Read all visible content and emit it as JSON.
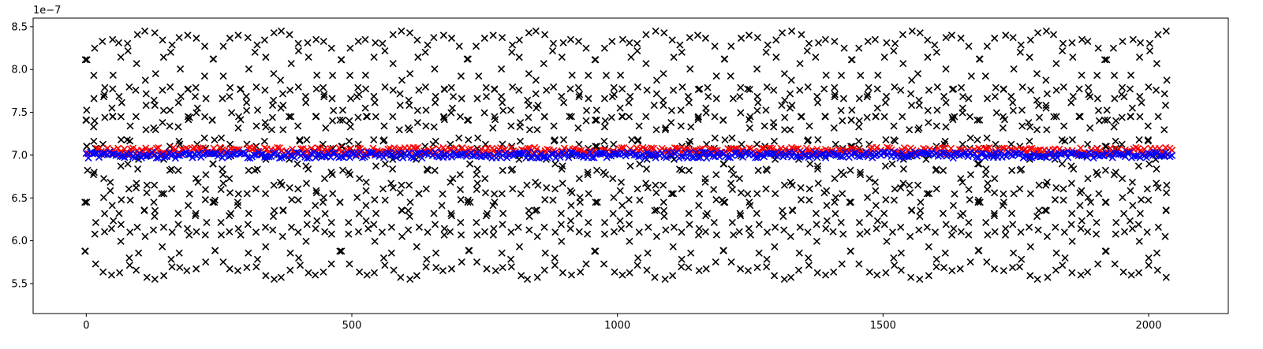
{
  "chart_data": {
    "type": "scatter",
    "title": "",
    "xlabel": "",
    "ylabel": "",
    "y_offset_label": "1e−7",
    "xlim": [
      -100,
      2150
    ],
    "ylim": [
      5.15,
      8.6
    ],
    "y_scale_factor": 1e-07,
    "x_ticks": [
      0,
      500,
      1000,
      1500,
      2000
    ],
    "x_tick_labels": [
      "0",
      "500",
      "1000",
      "1500",
      "2000"
    ],
    "y_ticks": [
      5.5,
      6.0,
      6.5,
      7.0,
      7.5,
      8.0,
      8.5
    ],
    "y_tick_labels": [
      "5.5",
      "6.0",
      "6.5",
      "7.0",
      "7.5",
      "8.0",
      "8.5"
    ],
    "grid": false,
    "legend": "none",
    "colors": {
      "black_series": "#000000",
      "red_series": "#ff0000",
      "blue_series": "#0000ff"
    },
    "series": [
      {
        "marker": "x",
        "color": "#000000",
        "x_range": [
          0,
          2047
        ],
        "point_step": 16,
        "description_values": "oscillating curves between 5.3 and 8.45",
        "curves": [
          {
            "center": 7.0,
            "amplitude": 1.45,
            "period": 480,
            "phase": 1.5
          },
          {
            "center": 7.0,
            "amplitude": 1.45,
            "period": 480,
            "phase": -1.5
          },
          {
            "center": 7.0,
            "amplitude": 1.35,
            "period": 480,
            "phase": 0.6
          },
          {
            "center": 7.0,
            "amplitude": 1.35,
            "period": 480,
            "phase": -0.6
          },
          {
            "center": 7.0,
            "amplitude": 1.4,
            "period": 480,
            "phase": 2.5
          },
          {
            "center": 7.0,
            "amplitude": 1.4,
            "period": 480,
            "phase": -2.5
          },
          {
            "center": 6.95,
            "amplitude": 0.85,
            "period": 240,
            "phase": 1.0
          },
          {
            "center": 6.95,
            "amplitude": 0.85,
            "period": 240,
            "phase": -1.0
          },
          {
            "center": 6.95,
            "amplitude": 0.85,
            "period": 240,
            "phase": 2.2
          },
          {
            "center": 6.95,
            "amplitude": 0.85,
            "period": 240,
            "phase": -2.2
          },
          {
            "center": 7.0,
            "amplitude": 0.55,
            "period": 160,
            "phase": 0.3
          },
          {
            "center": 7.0,
            "amplitude": 0.55,
            "period": 160,
            "phase": -1.9
          }
        ]
      },
      {
        "marker": "x",
        "color": "#ff0000",
        "x_range": [
          0,
          2047
        ],
        "point_step": 4,
        "values_center": 7.05,
        "values_spread": 0.04
      },
      {
        "marker": "x",
        "color": "#0000ff",
        "x_range": [
          0,
          2047
        ],
        "point_step": 4,
        "values_center": 7.0,
        "values_spread": 0.035
      }
    ]
  }
}
